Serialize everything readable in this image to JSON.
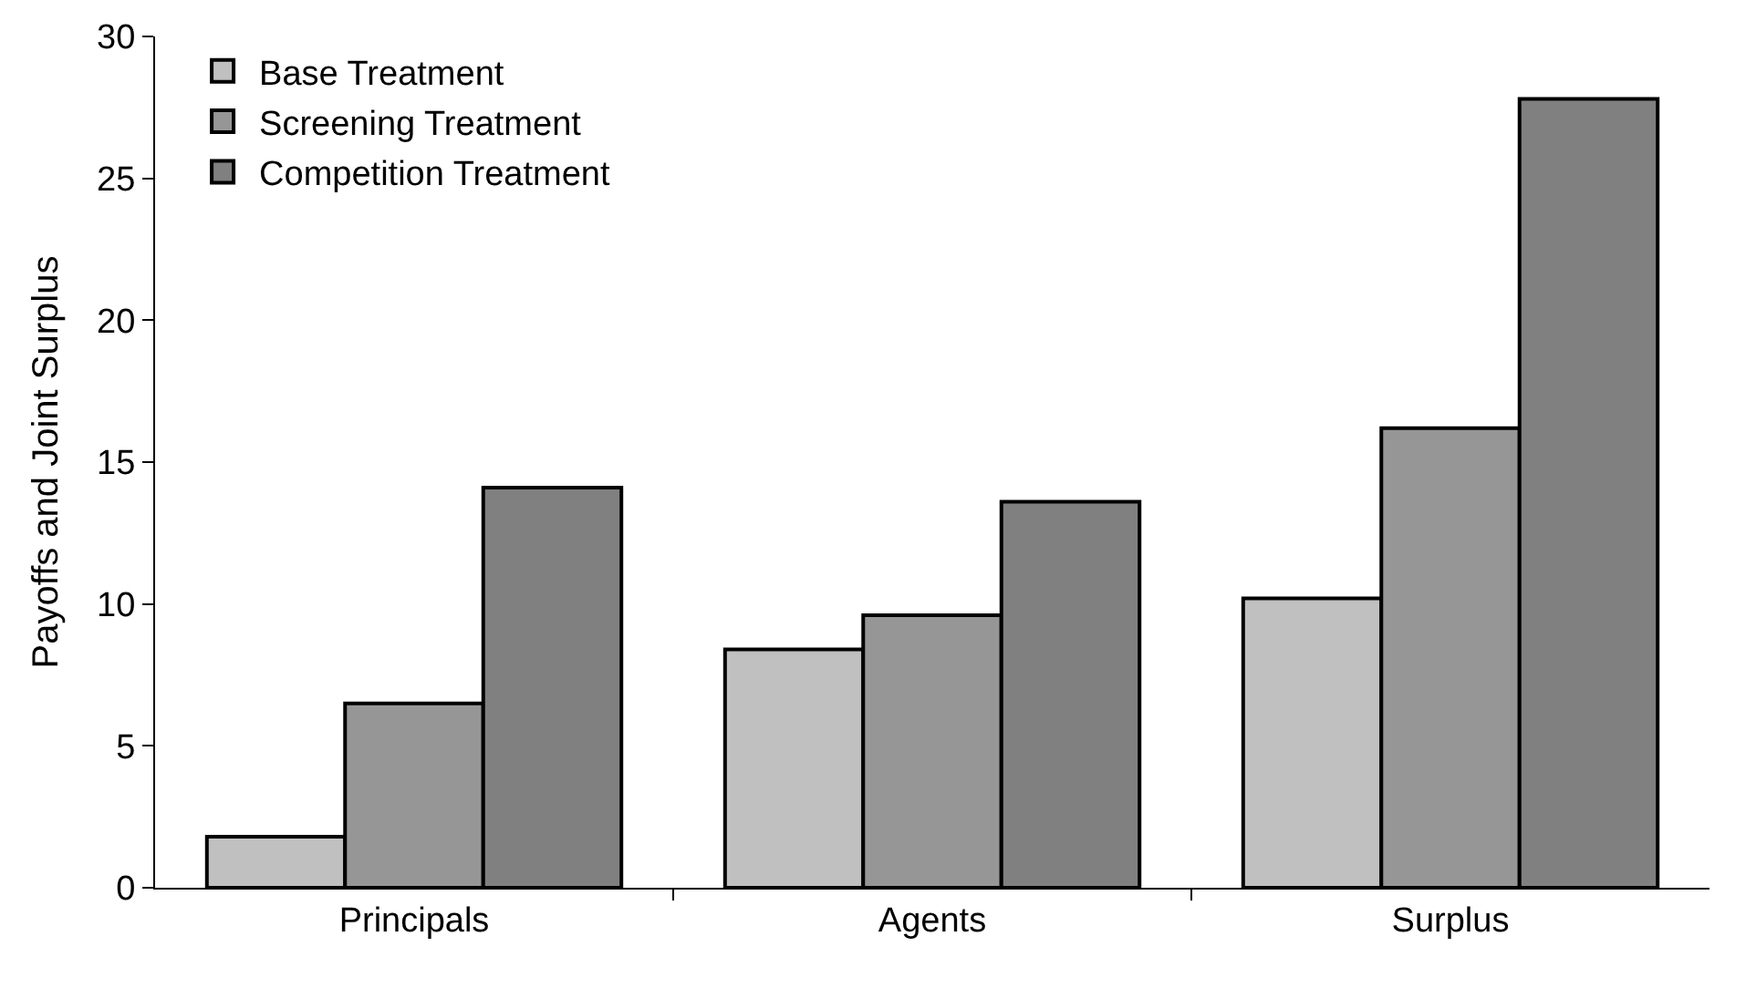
{
  "chart_data": {
    "type": "bar",
    "ylabel": "Payoffs and Joint Surplus",
    "categories": [
      "Principals",
      "Agents",
      "Surplus"
    ],
    "series": [
      {
        "name": "Base Treatment",
        "color": "#c0c0c0",
        "values": [
          1.8,
          8.4,
          10.2
        ]
      },
      {
        "name": "Screening Treatment",
        "color": "#969696",
        "values": [
          6.5,
          9.6,
          16.2
        ]
      },
      {
        "name": "Competition Treatment",
        "color": "#808080",
        "values": [
          14.1,
          13.6,
          27.8
        ]
      }
    ],
    "ylim": [
      0,
      30
    ],
    "yticks": [
      0,
      5,
      10,
      15,
      20,
      25,
      30
    ],
    "grid": false,
    "legend": "top left"
  }
}
